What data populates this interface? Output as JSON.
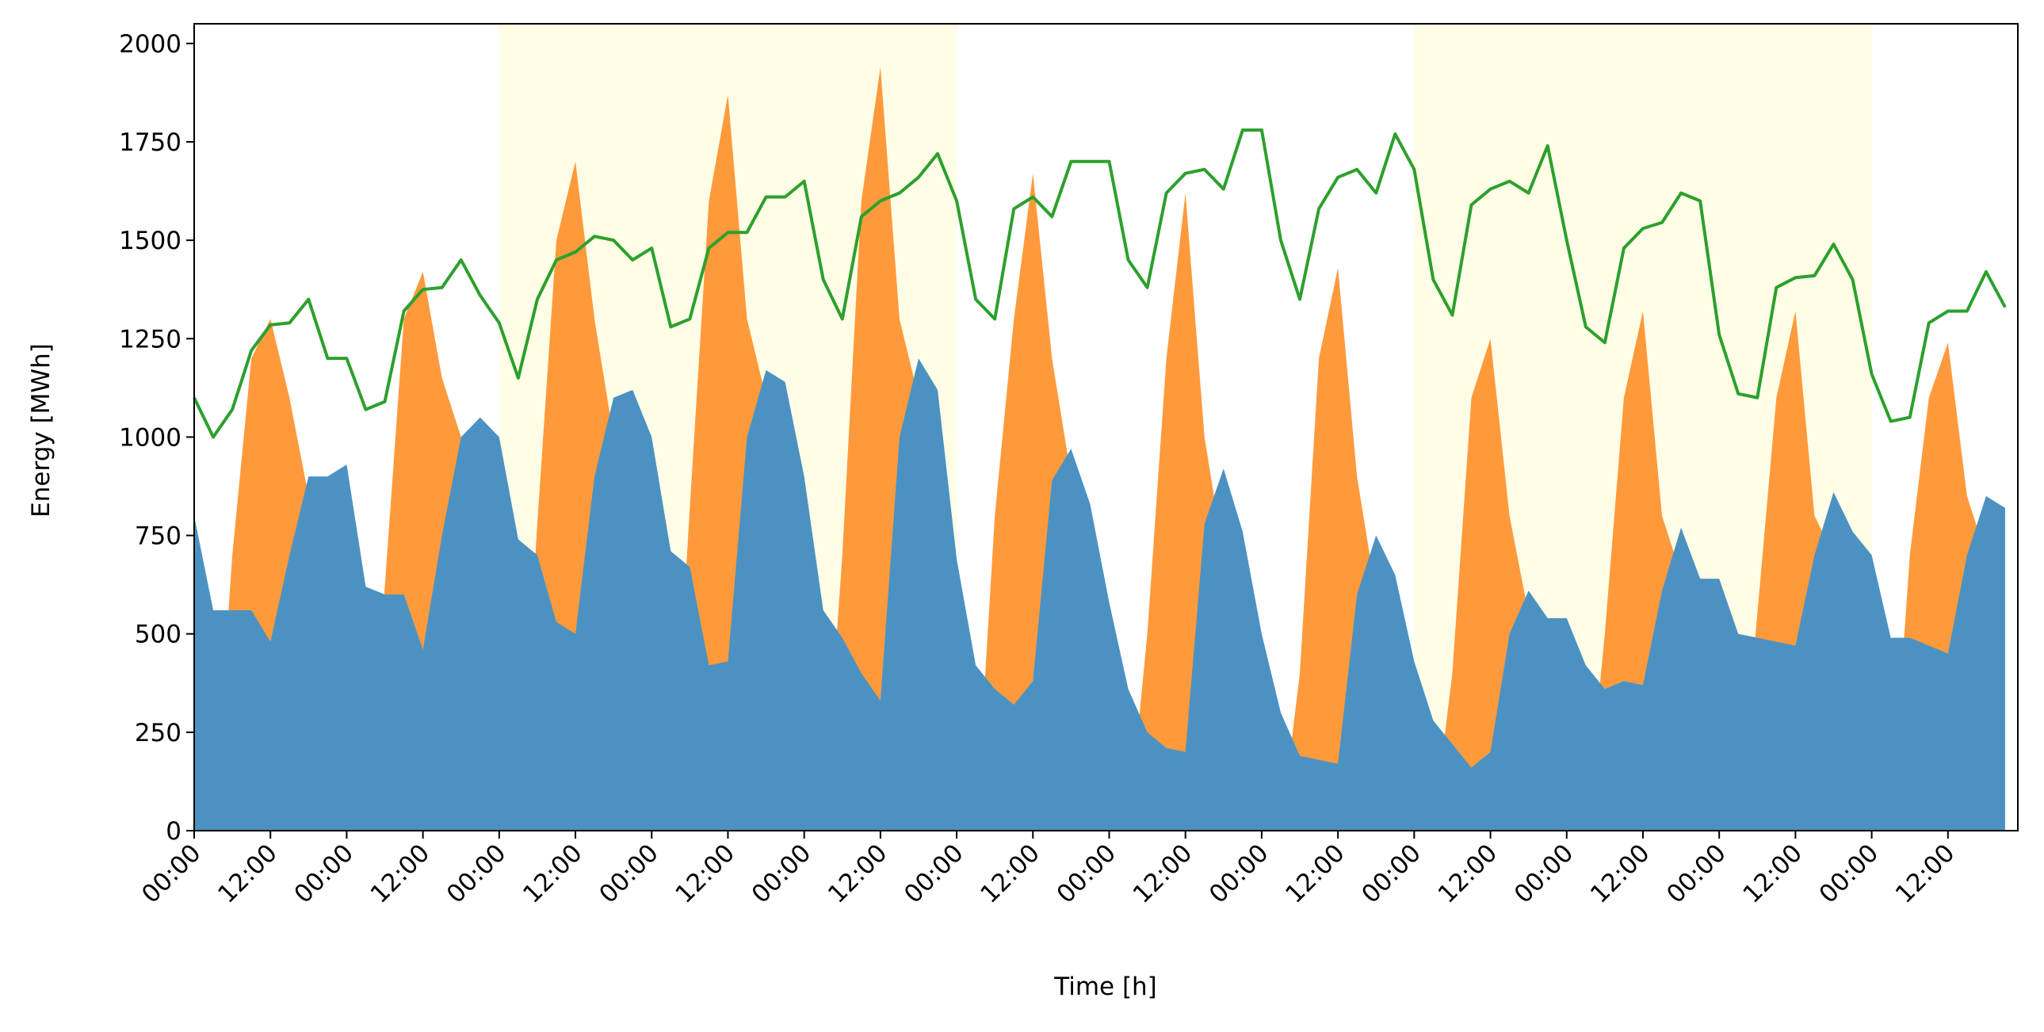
{
  "chart_data": {
    "type": "area",
    "xlabel": "Time [h]",
    "ylabel": "Energy [MWh]",
    "xlim": [
      0,
      287
    ],
    "ylim": [
      0,
      2050
    ],
    "yticks": [
      0,
      250,
      500,
      750,
      1000,
      1250,
      1500,
      1750,
      2000
    ],
    "xticks": [
      {
        "value": 0,
        "label": "00:00"
      },
      {
        "value": 12,
        "label": "12:00"
      },
      {
        "value": 24,
        "label": "00:00"
      },
      {
        "value": 36,
        "label": "12:00"
      },
      {
        "value": 48,
        "label": "00:00"
      },
      {
        "value": 60,
        "label": "12:00"
      },
      {
        "value": 72,
        "label": "00:00"
      },
      {
        "value": 84,
        "label": "12:00"
      },
      {
        "value": 96,
        "label": "00:00"
      },
      {
        "value": 108,
        "label": "12:00"
      },
      {
        "value": 120,
        "label": "00:00"
      },
      {
        "value": 132,
        "label": "12:00"
      },
      {
        "value": 144,
        "label": "00:00"
      },
      {
        "value": 156,
        "label": "12:00"
      },
      {
        "value": 168,
        "label": "00:00"
      },
      {
        "value": 180,
        "label": "12:00"
      },
      {
        "value": 192,
        "label": "00:00"
      },
      {
        "value": 204,
        "label": "12:00"
      },
      {
        "value": 216,
        "label": "00:00"
      },
      {
        "value": 228,
        "label": "12:00"
      },
      {
        "value": 240,
        "label": "00:00"
      },
      {
        "value": 252,
        "label": "12:00"
      },
      {
        "value": 264,
        "label": "00:00"
      },
      {
        "value": 276,
        "label": "12:00"
      }
    ],
    "highlight_spans": [
      [
        48,
        120
      ],
      [
        192,
        264
      ]
    ],
    "highlight_color": "#fffde6",
    "x": [
      0,
      3,
      6,
      9,
      12,
      15,
      18,
      21,
      24,
      27,
      30,
      33,
      36,
      39,
      42,
      45,
      48,
      51,
      54,
      57,
      60,
      63,
      66,
      69,
      72,
      75,
      78,
      81,
      84,
      87,
      90,
      93,
      96,
      99,
      102,
      105,
      108,
      111,
      114,
      117,
      120,
      123,
      126,
      129,
      132,
      135,
      138,
      141,
      144,
      147,
      150,
      153,
      156,
      159,
      162,
      165,
      168,
      171,
      174,
      177,
      180,
      183,
      186,
      189,
      192,
      195,
      198,
      201,
      204,
      207,
      210,
      213,
      216,
      219,
      222,
      225,
      228,
      231,
      234,
      237,
      240,
      243,
      246,
      249,
      252,
      255,
      258,
      261,
      264,
      267,
      270,
      273,
      276,
      279,
      282,
      285
    ],
    "series": [
      {
        "kind": "area",
        "color": "#ff9a3c",
        "values": [
          0,
          0,
          700,
          1200,
          1300,
          1100,
          850,
          0,
          0,
          0,
          620,
          1300,
          1420,
          1150,
          1000,
          0,
          0,
          0,
          780,
          1500,
          1700,
          1300,
          1000,
          0,
          0,
          0,
          820,
          1600,
          1870,
          1300,
          1100,
          0,
          0,
          0,
          700,
          1600,
          1940,
          1300,
          1100,
          0,
          0,
          0,
          800,
          1300,
          1670,
          1200,
          900,
          0,
          0,
          0,
          500,
          1200,
          1620,
          1000,
          700,
          0,
          0,
          0,
          400,
          1200,
          1430,
          900,
          600,
          0,
          0,
          0,
          400,
          1100,
          1250,
          800,
          550,
          0,
          0,
          0,
          500,
          1100,
          1320,
          800,
          650,
          0,
          0,
          0,
          550,
          1100,
          1320,
          800,
          700,
          0,
          0,
          0,
          700,
          1100,
          1240,
          850,
          700,
          0
        ]
      },
      {
        "kind": "area",
        "color": "#4b92c3",
        "values": [
          800,
          560,
          560,
          560,
          480,
          700,
          900,
          900,
          930,
          620,
          600,
          600,
          460,
          750,
          1000,
          1050,
          1000,
          740,
          700,
          530,
          500,
          900,
          1100,
          1120,
          1000,
          710,
          670,
          420,
          430,
          1000,
          1170,
          1140,
          900,
          560,
          490,
          400,
          330,
          1000,
          1200,
          1120,
          690,
          420,
          360,
          320,
          380,
          890,
          970,
          830,
          580,
          360,
          250,
          210,
          200,
          780,
          920,
          760,
          500,
          300,
          190,
          180,
          170,
          600,
          750,
          650,
          430,
          280,
          220,
          160,
          200,
          500,
          610,
          540,
          540,
          420,
          360,
          380,
          370,
          610,
          770,
          640,
          640,
          500,
          490,
          480,
          470,
          700,
          860,
          760,
          700,
          490,
          490,
          470,
          450,
          700,
          850,
          820
        ]
      },
      {
        "kind": "line",
        "color": "#2ca02c",
        "values": [
          1100,
          1000,
          1070,
          1220,
          1285,
          1290,
          1350,
          1200,
          1200,
          1070,
          1090,
          1320,
          1375,
          1380,
          1450,
          1360,
          1290,
          1150,
          1350,
          1450,
          1470,
          1510,
          1500,
          1450,
          1480,
          1280,
          1300,
          1480,
          1520,
          1520,
          1610,
          1610,
          1650,
          1400,
          1300,
          1560,
          1600,
          1620,
          1660,
          1720,
          1600,
          1350,
          1300,
          1580,
          1610,
          1560,
          1700,
          1700,
          1700,
          1450,
          1380,
          1620,
          1670,
          1680,
          1630,
          1780,
          1780,
          1500,
          1350,
          1580,
          1660,
          1680,
          1620,
          1770,
          1680,
          1400,
          1310,
          1590,
          1630,
          1650,
          1620,
          1740,
          1500,
          1280,
          1240,
          1480,
          1530,
          1545,
          1620,
          1600,
          1260,
          1110,
          1100,
          1380,
          1405,
          1410,
          1490,
          1400,
          1160,
          1040,
          1050,
          1290,
          1320,
          1320,
          1420,
          1330
        ]
      }
    ]
  }
}
